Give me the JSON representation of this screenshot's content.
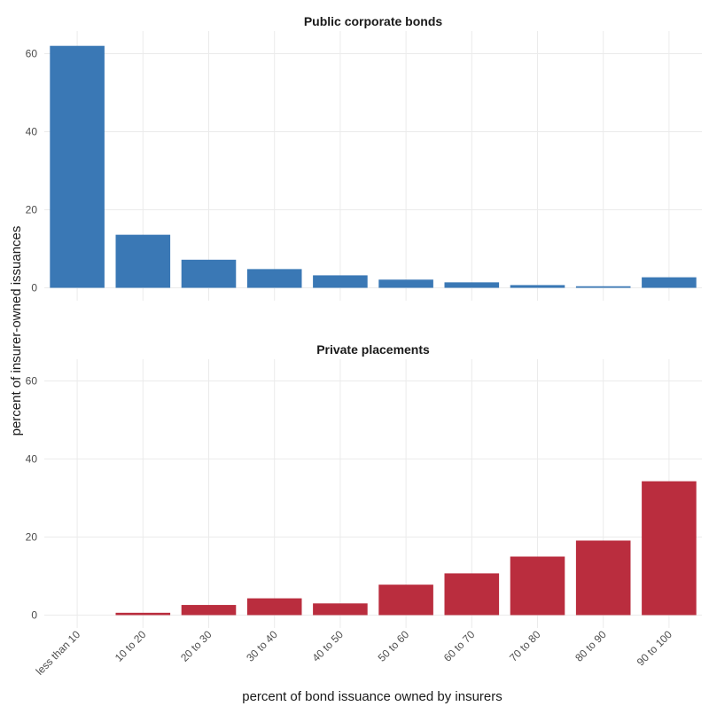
{
  "chart_data": {
    "type": "bar",
    "xlabel": "percent of bond issuance owned by insurers",
    "ylabel": "percent of insurer-owned issuances",
    "categories": [
      "less than 10",
      "10 to 20",
      "20 to 30",
      "30 to 40",
      "40 to 50",
      "50 to 60",
      "60 to 70",
      "70 to 80",
      "80 to 90",
      "90 to 100"
    ],
    "ylim": [
      0,
      65
    ],
    "yticks": [
      0,
      20,
      40,
      60
    ],
    "grid": true,
    "panels": [
      {
        "title": "Public corporate bonds",
        "color": "#3a78b5",
        "values": [
          62.0,
          13.6,
          7.2,
          4.8,
          3.2,
          2.1,
          1.4,
          0.7,
          0.4,
          2.7
        ]
      },
      {
        "title": "Private placements",
        "color": "#ba2d3e",
        "values": [
          0.0,
          0.6,
          2.6,
          4.3,
          3.0,
          7.8,
          10.7,
          15.0,
          19.1,
          34.3
        ]
      }
    ]
  }
}
